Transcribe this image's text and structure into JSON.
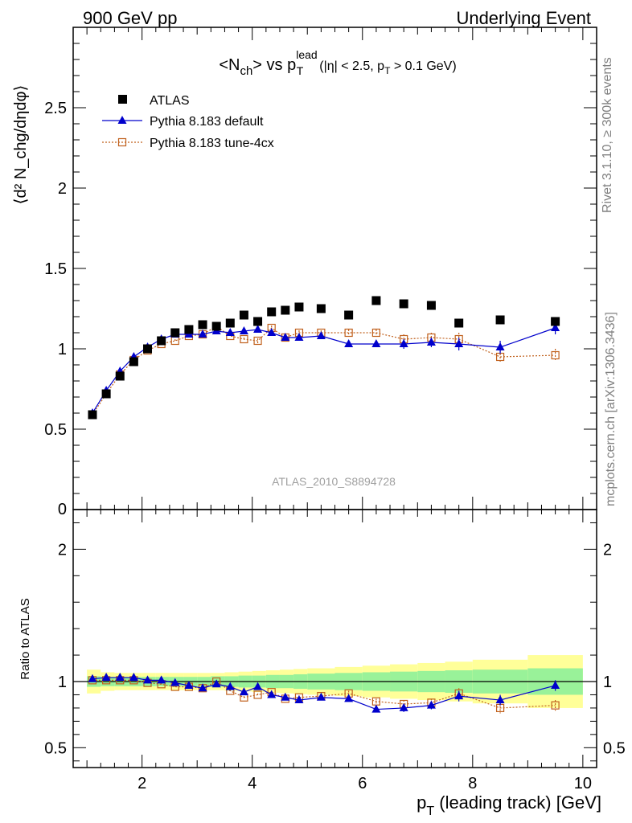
{
  "header": {
    "left_title": "900 GeV pp",
    "right_title": "Underlying Event"
  },
  "side_notes": {
    "rivet": "Rivet 3.1.10, ≥ 300k events",
    "mcplots": "mcplots.cern.ch [arXiv:1306.3436]"
  },
  "colors": {
    "atlas": "#000000",
    "default": "#0000cc",
    "tune4cx": "#c0601c",
    "band_inner": "#99f299",
    "band_outer": "#ffff99"
  },
  "chart_data": [
    {
      "type": "scatter",
      "title_main": "<N",
      "title_sub": "ch",
      "title_vs": "> vs p",
      "title_sup": "lead",
      "title_sub2": "T",
      "title_cuts": "(|η| < 2.5, p",
      "title_cuts_sub": "T",
      "title_cuts_end": " > 0.1 GeV)",
      "ylabel": "⟨d² N_chg/dηdφ⟩",
      "ylim": [
        0,
        3
      ],
      "yticks": [
        0.5,
        1,
        1.5,
        2,
        2.5
      ],
      "ytick_labels": [
        "0.5",
        "1",
        "1.5",
        "2",
        "2.5"
      ],
      "bottom_tick_label": "0",
      "xlim": [
        0.75,
        10.25
      ],
      "watermark": "ATLAS_2010_S8894728",
      "legend": [
        "ATLAS",
        "Pythia 8.183 default",
        "Pythia 8.183 tune-4cx"
      ],
      "series": [
        {
          "name": "ATLAS",
          "x": [
            1.1,
            1.35,
            1.6,
            1.85,
            2.1,
            2.35,
            2.6,
            2.85,
            3.1,
            3.35,
            3.6,
            3.85,
            4.1,
            4.35,
            4.6,
            4.85,
            5.25,
            5.75,
            6.25,
            6.75,
            7.25,
            7.75,
            8.5,
            9.5
          ],
          "y": [
            0.59,
            0.72,
            0.83,
            0.92,
            1.0,
            1.05,
            1.1,
            1.12,
            1.15,
            1.14,
            1.16,
            1.21,
            1.17,
            1.23,
            1.24,
            1.26,
            1.25,
            1.21,
            1.3,
            1.28,
            1.27,
            1.16,
            1.18,
            1.17
          ]
        },
        {
          "name": "Pythia 8.183 default",
          "x": [
            1.1,
            1.35,
            1.6,
            1.85,
            2.1,
            2.35,
            2.6,
            2.85,
            3.1,
            3.35,
            3.6,
            3.85,
            4.1,
            4.35,
            4.6,
            4.85,
            5.25,
            5.75,
            6.25,
            6.75,
            7.25,
            7.75,
            8.5,
            9.5
          ],
          "y": [
            0.6,
            0.74,
            0.86,
            0.95,
            1.01,
            1.06,
            1.09,
            1.09,
            1.09,
            1.11,
            1.1,
            1.11,
            1.12,
            1.1,
            1.07,
            1.07,
            1.08,
            1.03,
            1.03,
            1.03,
            1.04,
            1.03,
            1.01,
            1.13
          ],
          "yerr": [
            0.01,
            0.01,
            0.01,
            0.01,
            0.01,
            0.01,
            0.01,
            0.01,
            0.01,
            0.01,
            0.01,
            0.01,
            0.01,
            0.01,
            0.015,
            0.015,
            0.015,
            0.02,
            0.02,
            0.03,
            0.03,
            0.04,
            0.04,
            0.04
          ]
        },
        {
          "name": "Pythia 8.183 tune-4cx",
          "x": [
            1.1,
            1.35,
            1.6,
            1.85,
            2.1,
            2.35,
            2.6,
            2.85,
            3.1,
            3.35,
            3.6,
            3.85,
            4.1,
            4.35,
            4.6,
            4.85,
            5.25,
            5.75,
            6.25,
            6.75,
            7.25,
            7.75,
            8.5,
            9.5
          ],
          "y": [
            0.59,
            0.72,
            0.84,
            0.93,
            0.99,
            1.03,
            1.05,
            1.08,
            1.09,
            1.14,
            1.08,
            1.06,
            1.05,
            1.13,
            1.07,
            1.1,
            1.1,
            1.1,
            1.1,
            1.06,
            1.07,
            1.06,
            0.95,
            0.96
          ],
          "yerr": [
            0.01,
            0.01,
            0.01,
            0.01,
            0.01,
            0.01,
            0.01,
            0.01,
            0.01,
            0.01,
            0.01,
            0.01,
            0.015,
            0.015,
            0.015,
            0.015,
            0.015,
            0.02,
            0.02,
            0.03,
            0.03,
            0.04,
            0.04,
            0.04
          ]
        }
      ]
    },
    {
      "type": "scatter",
      "ylabel": "Ratio to ATLAS",
      "xlabel": "p",
      "xlabel_sub": "T",
      "xlabel_rest": " (leading track) [GeV]",
      "ylim": [
        0.35,
        2.3
      ],
      "yticks": [
        0.5,
        1,
        2
      ],
      "ytick_labels": [
        "0.5",
        "1",
        "2"
      ],
      "xlim": [
        0.75,
        10.25
      ],
      "xticks": [
        2,
        4,
        6,
        8,
        10
      ],
      "xtick_labels": [
        "2",
        "4",
        "6",
        "8",
        "10"
      ],
      "band_edges": [
        1.0,
        1.25,
        1.5,
        1.75,
        2.0,
        2.25,
        2.5,
        2.75,
        3.0,
        3.25,
        3.5,
        3.75,
        4.0,
        4.25,
        4.5,
        4.75,
        5.0,
        5.5,
        6.0,
        6.5,
        7.0,
        7.5,
        8.0,
        9.0,
        10.0
      ],
      "band_inner_rel": [
        0.04,
        0.035,
        0.035,
        0.035,
        0.035,
        0.035,
        0.035,
        0.035,
        0.035,
        0.04,
        0.04,
        0.045,
        0.045,
        0.05,
        0.05,
        0.055,
        0.06,
        0.065,
        0.07,
        0.075,
        0.08,
        0.085,
        0.09,
        0.1
      ],
      "band_outer_rel": [
        0.09,
        0.07,
        0.065,
        0.065,
        0.065,
        0.065,
        0.065,
        0.065,
        0.065,
        0.065,
        0.07,
        0.075,
        0.08,
        0.085,
        0.09,
        0.095,
        0.1,
        0.11,
        0.12,
        0.13,
        0.14,
        0.15,
        0.165,
        0.2
      ],
      "series": [
        {
          "name": "Pythia 8.183 default",
          "x": [
            1.1,
            1.35,
            1.6,
            1.85,
            2.1,
            2.35,
            2.6,
            2.85,
            3.1,
            3.35,
            3.6,
            3.85,
            4.1,
            4.35,
            4.6,
            4.85,
            5.25,
            5.75,
            6.25,
            6.75,
            7.25,
            7.75,
            8.5,
            9.5
          ],
          "y": [
            1.02,
            1.03,
            1.03,
            1.03,
            1.01,
            1.01,
            0.99,
            0.97,
            0.95,
            0.98,
            0.96,
            0.92,
            0.96,
            0.9,
            0.88,
            0.86,
            0.88,
            0.87,
            0.79,
            0.8,
            0.82,
            0.89,
            0.86,
            0.97
          ],
          "yerr": [
            0.01,
            0.01,
            0.01,
            0.01,
            0.01,
            0.01,
            0.01,
            0.01,
            0.01,
            0.01,
            0.01,
            0.01,
            0.01,
            0.01,
            0.01,
            0.015,
            0.015,
            0.02,
            0.02,
            0.03,
            0.03,
            0.04,
            0.04,
            0.04
          ]
        },
        {
          "name": "Pythia 8.183 tune-4cx",
          "x": [
            1.1,
            1.35,
            1.6,
            1.85,
            2.1,
            2.35,
            2.6,
            2.85,
            3.1,
            3.35,
            3.6,
            3.85,
            4.1,
            4.35,
            4.6,
            4.85,
            5.25,
            5.75,
            6.25,
            6.75,
            7.25,
            7.75,
            8.5,
            9.5
          ],
          "y": [
            1.01,
            1.01,
            1.01,
            1.01,
            0.99,
            0.98,
            0.96,
            0.96,
            0.95,
            1.0,
            0.93,
            0.88,
            0.9,
            0.92,
            0.87,
            0.88,
            0.89,
            0.91,
            0.85,
            0.83,
            0.84,
            0.91,
            0.8,
            0.82
          ],
          "yerr": [
            0.01,
            0.01,
            0.01,
            0.01,
            0.01,
            0.01,
            0.01,
            0.01,
            0.01,
            0.01,
            0.01,
            0.01,
            0.01,
            0.01,
            0.01,
            0.015,
            0.015,
            0.02,
            0.02,
            0.03,
            0.03,
            0.04,
            0.04,
            0.04
          ]
        }
      ]
    }
  ]
}
